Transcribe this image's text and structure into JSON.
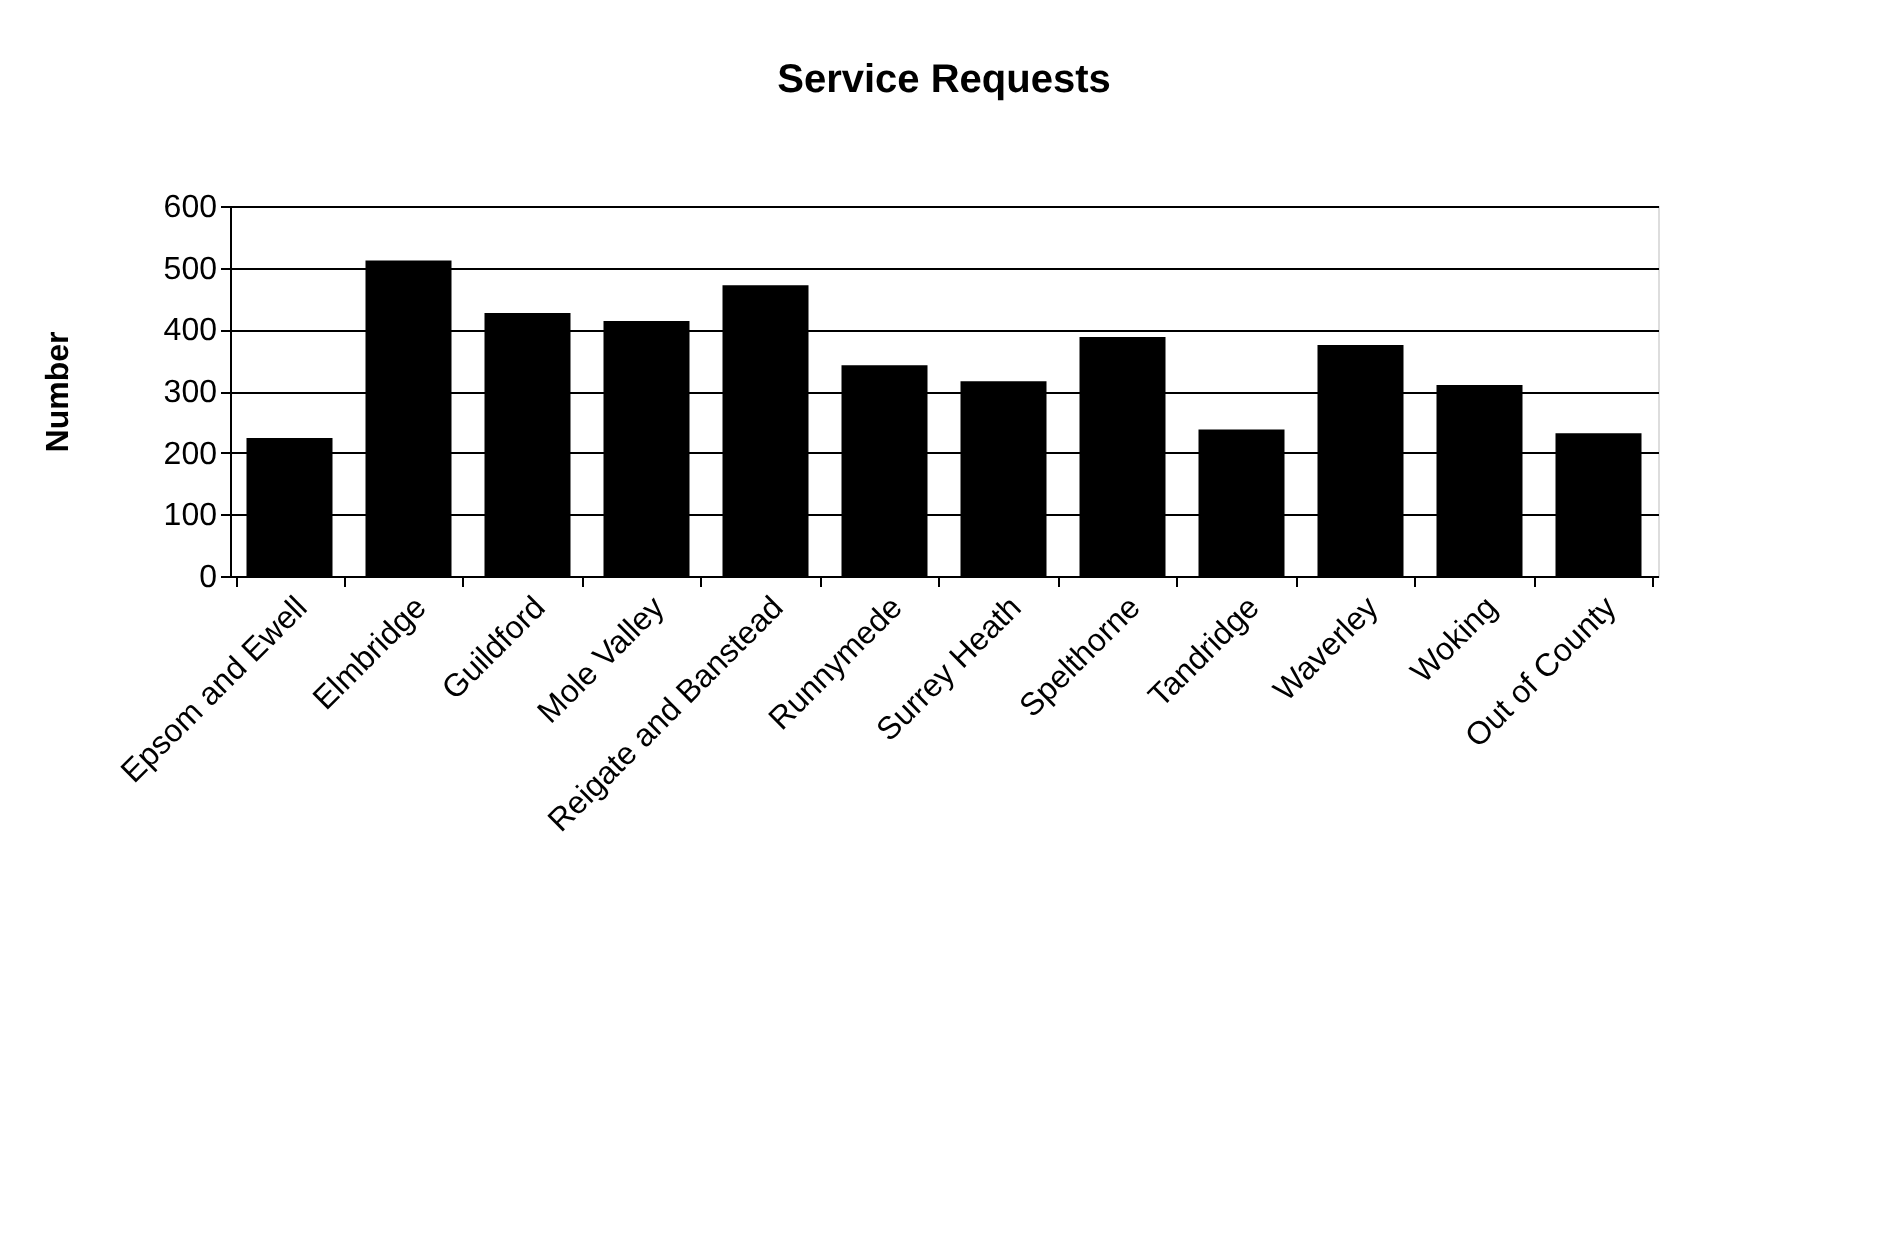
{
  "chart_data": {
    "type": "bar",
    "title": "Service Requests",
    "ylabel": "Number",
    "categories": [
      "Epsom and Ewell",
      "Elmbridge",
      "Guildford",
      "Mole Valley",
      "Reigate and Banstead",
      "Runnymede",
      "Surrey Heath",
      "Spelthorne",
      "Tandridge",
      "Waverley",
      "Woking",
      "Out of County"
    ],
    "values": [
      222,
      510,
      425,
      412,
      470,
      340,
      314,
      386,
      236,
      373,
      308,
      230
    ],
    "color": "#000000",
    "ylim": [
      0,
      600
    ],
    "yticks": [
      0,
      100,
      200,
      300,
      400,
      500,
      600
    ],
    "grid": "y"
  }
}
